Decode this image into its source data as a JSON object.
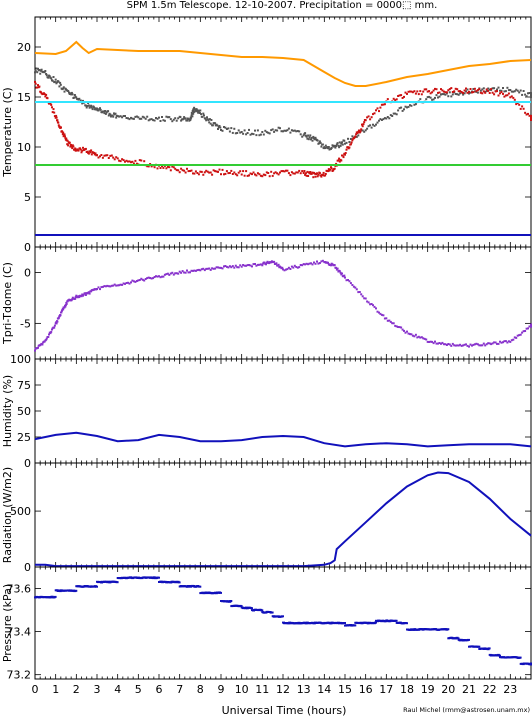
{
  "title": "SPM 1.5m Telescope. 12-10-2007. Precipitation = 0000⬚ mm.",
  "credit": "Raul Michel (rmm@astrosen.unam.mx)",
  "xlabel": "Universal Time (hours)",
  "x_ticks": [
    "0",
    "1",
    "2",
    "3",
    "4",
    "5",
    "6",
    "7",
    "8",
    "9",
    "10",
    "11",
    "12",
    "13",
    "14",
    "15",
    "16",
    "17",
    "18",
    "19",
    "20",
    "21",
    "22",
    "23"
  ],
  "chart_data": [
    {
      "type": "line",
      "ylabel": "Temperature (C)",
      "xlim": [
        0,
        24
      ],
      "ylim": [
        0,
        23
      ],
      "y_ticks": [
        "0",
        "5",
        "10",
        "15",
        "20"
      ],
      "grid": false,
      "series": [
        {
          "color": "#ff9900",
          "style": "line",
          "x": [
            0,
            1,
            1.5,
            2,
            2.3,
            2.6,
            3,
            4,
            5,
            6,
            7,
            8,
            9,
            10,
            11,
            12,
            13,
            14,
            14.5,
            15,
            15.5,
            16,
            17,
            18,
            19,
            20,
            21,
            22,
            23,
            24
          ],
          "y": [
            19.4,
            19.3,
            19.6,
            20.5,
            19.9,
            19.4,
            19.8,
            19.7,
            19.6,
            19.6,
            19.6,
            19.4,
            19.2,
            19.0,
            19.0,
            18.9,
            18.7,
            17.5,
            16.9,
            16.4,
            16.1,
            16.1,
            16.5,
            17.0,
            17.3,
            17.7,
            18.1,
            18.3,
            18.6,
            18.7
          ]
        },
        {
          "color": "#555555",
          "style": "points",
          "x": [
            0,
            0.5,
            1,
            1.5,
            2,
            2.5,
            3,
            3.5,
            4,
            5,
            6,
            7,
            7.5,
            7.7,
            8,
            8.5,
            9,
            10,
            11,
            12,
            13,
            13.5,
            14,
            14.5,
            15,
            16,
            17,
            18,
            19,
            20,
            21,
            22,
            23,
            24
          ],
          "y": [
            17.7,
            17.4,
            16.6,
            15.6,
            14.9,
            14.2,
            13.8,
            13.4,
            13.0,
            12.9,
            12.8,
            12.8,
            12.8,
            13.7,
            13.4,
            12.5,
            11.8,
            11.5,
            11.4,
            11.8,
            11.2,
            10.8,
            10.0,
            10.0,
            10.5,
            11.7,
            12.9,
            14.1,
            14.8,
            15.2,
            15.6,
            15.7,
            15.7,
            15.2
          ]
        },
        {
          "color": "#cc1111",
          "style": "points",
          "x": [
            0,
            0.5,
            1,
            1.3,
            1.6,
            2,
            2.5,
            3,
            4,
            5,
            6,
            7,
            8,
            9,
            10,
            11,
            12,
            13,
            13.5,
            14,
            14.5,
            15,
            15.5,
            16,
            17,
            18,
            19,
            20,
            21,
            22,
            23,
            24
          ],
          "y": [
            16.3,
            15.2,
            13.1,
            11.6,
            10.3,
            9.8,
            9.6,
            9.2,
            8.8,
            8.5,
            8.0,
            7.7,
            7.4,
            7.5,
            7.4,
            7.2,
            7.4,
            7.4,
            7.2,
            7.3,
            8.0,
            9.4,
            11.0,
            12.6,
            14.5,
            15.3,
            15.6,
            15.7,
            15.6,
            15.6,
            15.1,
            12.9
          ]
        },
        {
          "color": "#33e5ff",
          "style": "line",
          "x": [
            0,
            24
          ],
          "y": [
            14.5,
            14.5
          ]
        },
        {
          "color": "#33cc33",
          "style": "line",
          "x": [
            0,
            24
          ],
          "y": [
            8.2,
            8.2
          ]
        },
        {
          "color": "#1111bb",
          "style": "line",
          "x": [
            0,
            24
          ],
          "y": [
            1.2,
            1.2
          ]
        }
      ]
    },
    {
      "type": "scatter",
      "ylabel": "Tpri-Tdome (C)",
      "xlim": [
        0,
        24
      ],
      "ylim": [
        -8.5,
        2.5
      ],
      "y_ticks": [
        "0",
        "-5"
      ],
      "grid": false,
      "series": [
        {
          "color": "#8833cc",
          "style": "points",
          "x": [
            0,
            0.5,
            1,
            1.3,
            1.6,
            2,
            2.5,
            3,
            4,
            5,
            6,
            7,
            8,
            9,
            10,
            11,
            11.5,
            12,
            13,
            14,
            14.5,
            15,
            16,
            17,
            18,
            19,
            20,
            21,
            22,
            23,
            24
          ],
          "y": [
            -7.6,
            -6.7,
            -5.1,
            -3.8,
            -2.8,
            -2.4,
            -2.1,
            -1.6,
            -1.2,
            -0.8,
            -0.4,
            0,
            0.2,
            0.5,
            0.6,
            0.8,
            1.1,
            0.3,
            0.7,
            1.1,
            0.6,
            -0.5,
            -2.6,
            -4.6,
            -5.9,
            -6.7,
            -7.1,
            -7.2,
            -7.0,
            -6.8,
            -5.2
          ]
        }
      ]
    },
    {
      "type": "line",
      "ylabel": "Humidity (%)",
      "xlim": [
        0,
        24
      ],
      "ylim": [
        0,
        100
      ],
      "y_ticks": [
        "0",
        "25",
        "50",
        "75",
        "100"
      ],
      "grid": false,
      "series": [
        {
          "color": "#1111bb",
          "style": "line",
          "x": [
            0,
            1,
            2,
            3,
            4,
            5,
            6,
            7,
            8,
            9,
            10,
            11,
            12,
            13,
            14,
            15,
            16,
            17,
            18,
            19,
            20,
            21,
            22,
            23,
            24
          ],
          "y": [
            23,
            27,
            29,
            26,
            21,
            22,
            27,
            25,
            21,
            21,
            22,
            25,
            26,
            25,
            19,
            16,
            18,
            19,
            18,
            16,
            17,
            18,
            18,
            18,
            16
          ]
        }
      ]
    },
    {
      "type": "area",
      "ylabel": "Radiation (W/m2)",
      "xlim": [
        0,
        24
      ],
      "ylim": [
        0,
        930
      ],
      "y_ticks": [
        "0",
        "500"
      ],
      "grid": false,
      "series": [
        {
          "color": "#1111bb",
          "style": "line",
          "x": [
            0,
            0.5,
            1,
            2,
            4,
            6,
            8,
            10,
            12,
            13,
            14,
            14.3,
            14.5,
            14.6,
            15,
            16,
            17,
            18,
            19,
            19.5,
            20,
            21,
            22,
            23,
            24
          ],
          "y": [
            20,
            20,
            8,
            8,
            8,
            8,
            8,
            8,
            8,
            8,
            20,
            35,
            60,
            160,
            230,
            400,
            570,
            720,
            820,
            845,
            840,
            760,
            610,
            430,
            280
          ]
        }
      ]
    },
    {
      "type": "scatter",
      "ylabel": "Pressure (kPa)",
      "xlim": [
        0,
        24
      ],
      "ylim": [
        73.18,
        73.7
      ],
      "y_ticks": [
        "73.6",
        "73.4",
        "73.2"
      ],
      "grid": false,
      "series": [
        {
          "color": "#1111bb",
          "style": "points",
          "x": [
            0,
            0.5,
            1,
            1.5,
            2,
            2.5,
            3,
            3.5,
            4,
            4.5,
            5,
            5.5,
            6,
            6.5,
            7,
            7.5,
            8,
            8.5,
            9,
            9.5,
            10,
            10.5,
            11,
            11.5,
            12,
            12.5,
            13,
            13.5,
            14,
            14.5,
            15,
            15.5,
            16,
            16.5,
            17,
            17.5,
            18,
            18.5,
            19,
            19.5,
            20,
            20.5,
            21,
            21.5,
            22,
            22.5,
            23,
            23.5,
            24
          ],
          "y": [
            73.56,
            73.56,
            73.59,
            73.59,
            73.61,
            73.61,
            73.63,
            73.63,
            73.65,
            73.65,
            73.65,
            73.65,
            73.63,
            73.63,
            73.61,
            73.61,
            73.58,
            73.58,
            73.54,
            73.52,
            73.51,
            73.5,
            73.49,
            73.47,
            73.44,
            73.44,
            73.44,
            73.44,
            73.44,
            73.44,
            73.43,
            73.44,
            73.44,
            73.45,
            73.45,
            73.44,
            73.41,
            73.41,
            73.41,
            73.41,
            73.37,
            73.36,
            73.33,
            73.32,
            73.29,
            73.28,
            73.28,
            73.25,
            73.25
          ]
        }
      ]
    }
  ]
}
